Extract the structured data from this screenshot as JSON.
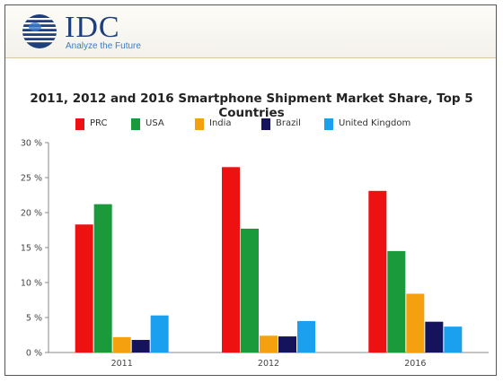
{
  "header": {
    "logo_text": "IDC",
    "tagline": "Analyze the Future"
  },
  "chart_data": {
    "type": "bar",
    "title": "2011, 2012 and 2016 Smartphone Shipment Market Share, Top 5 Countries",
    "xlabel": "",
    "ylabel": "",
    "categories": [
      "2011",
      "2012",
      "2016"
    ],
    "ylim": [
      0,
      30
    ],
    "yticks": [
      "0 %",
      "5 %",
      "10 %",
      "15 %",
      "20 %",
      "25 %",
      "30 %"
    ],
    "grid": false,
    "legend_position": "top",
    "series": [
      {
        "name": "PRC",
        "color": "#ee1111",
        "values": [
          18.3,
          26.5,
          23.1
        ]
      },
      {
        "name": "USA",
        "color": "#1a9a3a",
        "values": [
          21.2,
          17.7,
          14.5
        ]
      },
      {
        "name": "India",
        "color": "#f5a00f",
        "values": [
          2.2,
          2.4,
          8.4
        ]
      },
      {
        "name": "Brazil",
        "color": "#15135c",
        "values": [
          1.8,
          2.3,
          4.4
        ]
      },
      {
        "name": "United Kingdom",
        "color": "#1ba0ef",
        "values": [
          5.3,
          4.5,
          3.7
        ]
      }
    ]
  }
}
